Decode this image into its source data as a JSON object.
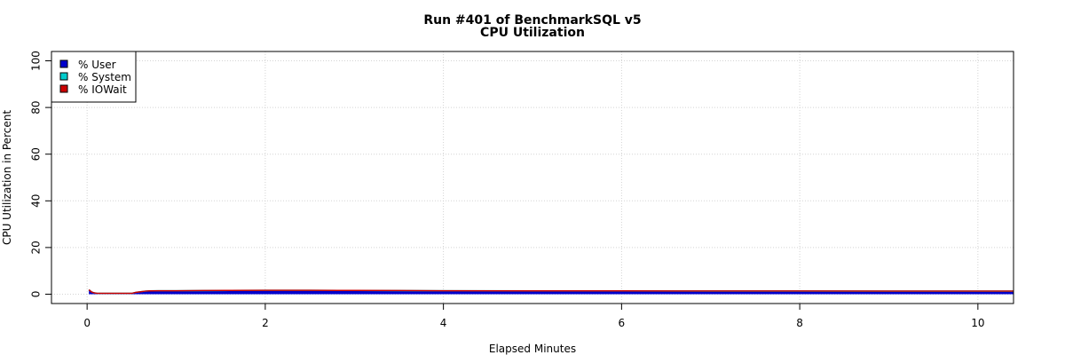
{
  "chart_data": {
    "type": "area",
    "title": [
      "Run #401 of BenchmarkSQL v5",
      "CPU Utilization"
    ],
    "xlabel": "Elapsed Minutes",
    "ylabel": "CPU Utilization in Percent",
    "xlim": [
      -0.4,
      10.4
    ],
    "ylim": [
      -4,
      104
    ],
    "xticks": [
      0,
      2,
      4,
      6,
      8,
      10
    ],
    "yticks": [
      0,
      20,
      40,
      60,
      80,
      100
    ],
    "grid": true,
    "legend_position": "top-left",
    "stacked": true,
    "x": [
      0.02,
      0.05,
      0.08,
      0.12,
      0.2,
      0.3,
      0.4,
      0.5,
      0.55,
      0.6,
      0.65,
      0.7,
      0.8,
      1.0,
      1.3,
      1.6,
      2.0,
      2.5,
      3.0,
      3.5,
      4.0,
      5.0,
      6.0,
      7.0,
      8.0,
      9.0,
      10.0,
      10.4
    ],
    "series": [
      {
        "name": "% User",
        "color": "#0000cc",
        "values": [
          1.8,
          0.9,
          0.5,
          0.3,
          0.3,
          0.3,
          0.3,
          0.3,
          0.7,
          0.9,
          1.1,
          1.2,
          1.2,
          1.2,
          1.25,
          1.3,
          1.35,
          1.35,
          1.3,
          1.25,
          1.15,
          1.1,
          1.1,
          1.05,
          1.05,
          1.0,
          1.0,
          1.0
        ]
      },
      {
        "name": "% System",
        "color": "#00cccc",
        "values": [
          0.1,
          0.05,
          0.05,
          0.05,
          0.05,
          0.05,
          0.05,
          0.05,
          0.1,
          0.15,
          0.2,
          0.2,
          0.25,
          0.25,
          0.3,
          0.3,
          0.3,
          0.3,
          0.3,
          0.3,
          0.3,
          0.3,
          0.3,
          0.3,
          0.3,
          0.3,
          0.3,
          0.3
        ]
      },
      {
        "name": "% IOWait",
        "color": "#cc0000",
        "values": [
          0,
          0,
          0,
          0,
          0,
          0,
          0,
          0,
          0,
          0,
          0,
          0,
          0,
          0,
          0,
          0,
          0,
          0,
          0,
          0,
          0,
          0,
          0,
          0,
          0,
          0,
          0,
          0
        ]
      }
    ]
  }
}
